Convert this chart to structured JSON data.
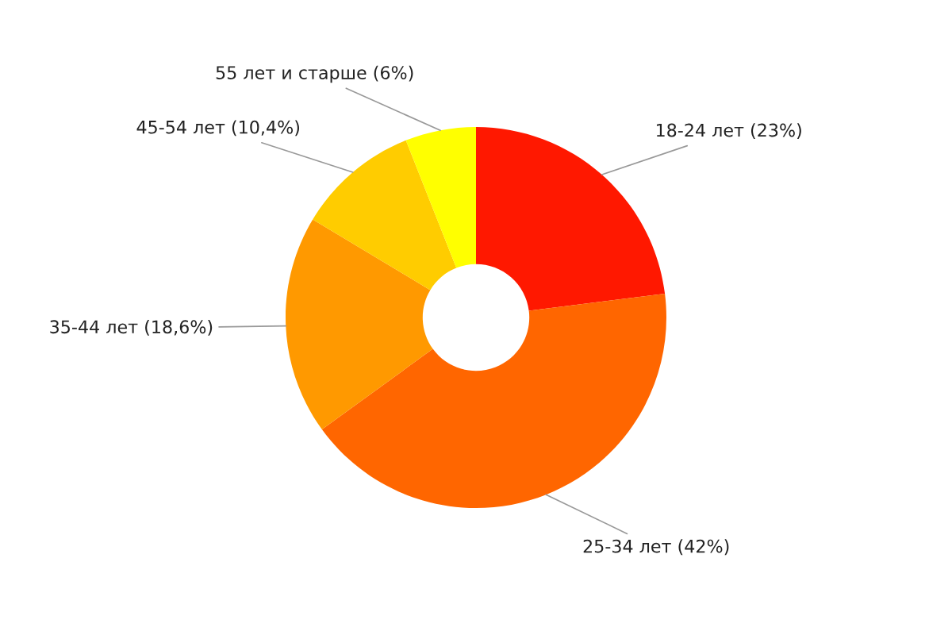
{
  "chart_data": {
    "type": "donut",
    "categories": [
      "18-24 лет (23%)",
      "25-34 лет (42%)",
      "35-44 лет (18,6%)",
      "45-54 лет (10,4%)",
      "55 лет и старше (6%)"
    ],
    "values": [
      23,
      42,
      18.6,
      10.4,
      6
    ],
    "colors": [
      "#ff1800",
      "#ff6600",
      "#ff9900",
      "#ffcc00",
      "#ffff00"
    ]
  }
}
